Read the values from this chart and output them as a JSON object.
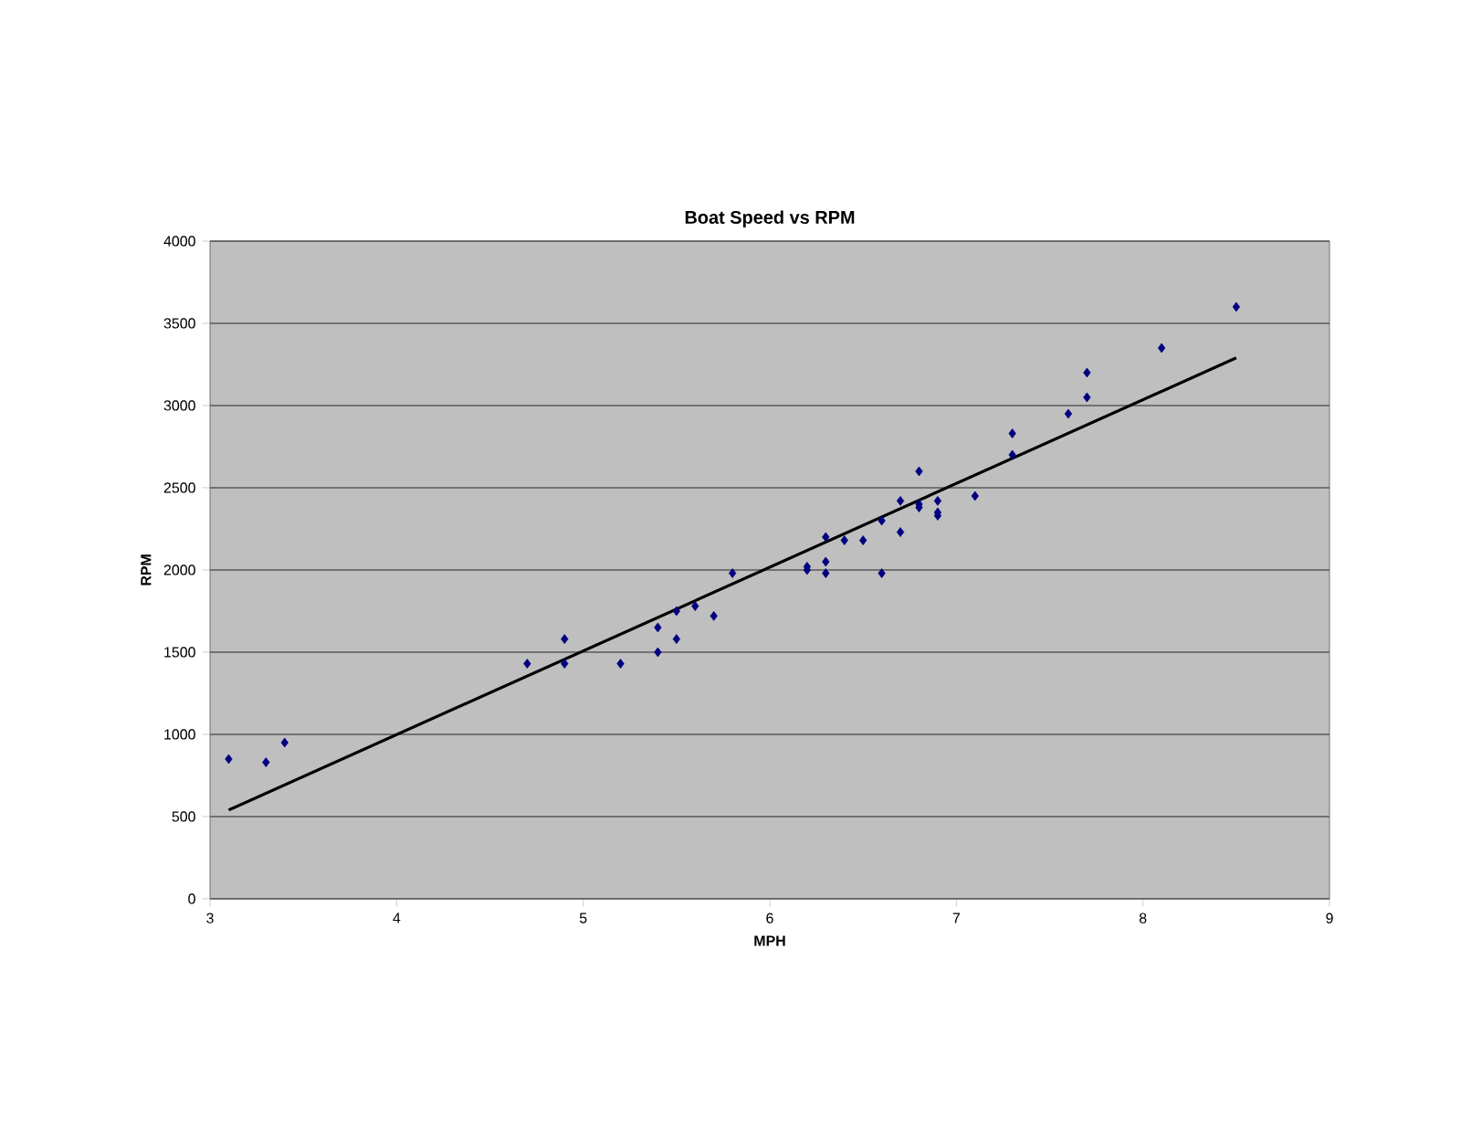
{
  "chart_data": {
    "type": "scatter",
    "title": "Boat Speed vs RPM",
    "xlabel": "MPH",
    "ylabel": "RPM",
    "xlim": [
      3,
      9
    ],
    "xticks": [
      3,
      4,
      5,
      6,
      7,
      8,
      9
    ],
    "ylim": [
      0,
      4000
    ],
    "yticks": [
      0,
      500,
      1000,
      1500,
      2000,
      2500,
      3000,
      3500,
      4000
    ],
    "grid": "y",
    "marker": "diamond",
    "series": [
      {
        "color": "#000080",
        "x": [
          3.1,
          3.3,
          3.4,
          4.7,
          4.9,
          4.9,
          5.2,
          5.4,
          5.4,
          5.5,
          5.5,
          5.6,
          5.7,
          5.8,
          6.2,
          6.2,
          6.3,
          6.3,
          6.3,
          6.4,
          6.5,
          6.6,
          6.6,
          6.7,
          6.7,
          6.8,
          6.8,
          6.8,
          6.9,
          6.9,
          6.9,
          7.1,
          7.3,
          7.3,
          7.6,
          7.7,
          7.7,
          8.1,
          8.5
        ],
        "values": [
          850,
          830,
          950,
          1430,
          1580,
          1430,
          1430,
          1650,
          1500,
          1750,
          1580,
          1780,
          1720,
          1980,
          2020,
          2000,
          2200,
          2050,
          1980,
          2180,
          2180,
          2300,
          1980,
          2420,
          2230,
          2600,
          2400,
          2380,
          2420,
          2350,
          2330,
          2450,
          2830,
          2700,
          2950,
          3200,
          3050,
          3350,
          3600
        ]
      },
      {
        "type": "line",
        "color": "#000000",
        "marker": "none",
        "line_style": "solid",
        "x": [
          3.1,
          8.5
        ],
        "values": [
          540,
          3290
        ]
      }
    ]
  }
}
